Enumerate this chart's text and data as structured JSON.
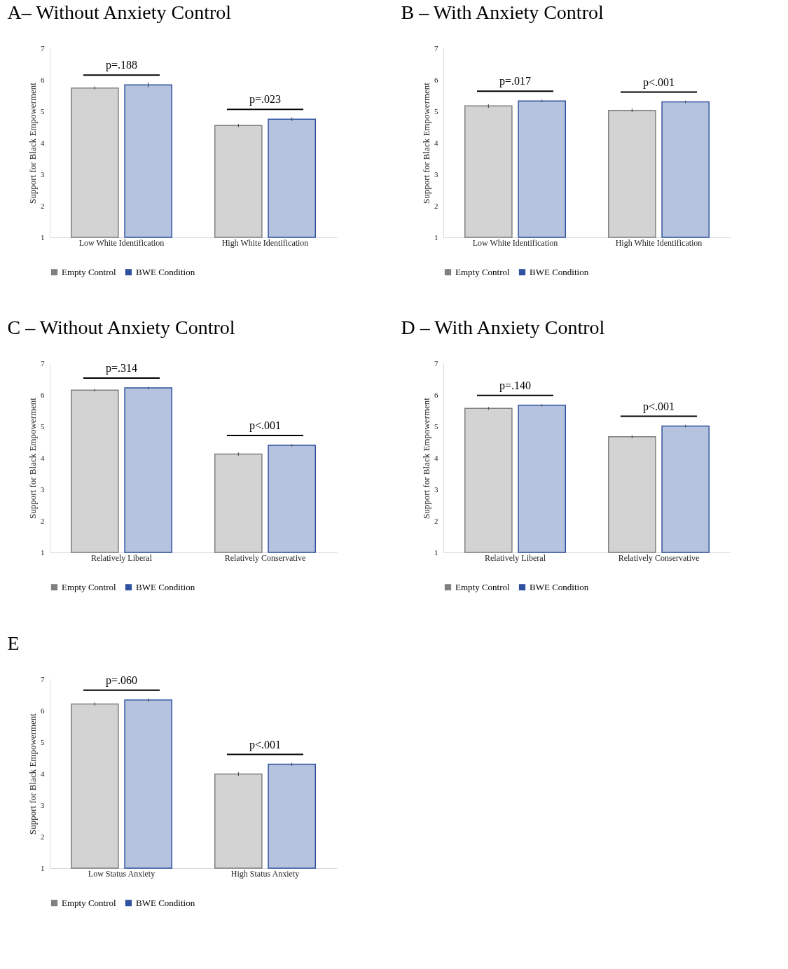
{
  "chart_data": [
    {
      "type": "bar",
      "title": "A– Without Anxiety Control",
      "ylabel": "Support for Black Empowerment",
      "categories": [
        "Low White Identification",
        "High White Identification"
      ],
      "series": [
        {
          "name": "Empty Control",
          "color": "#808080",
          "values": [
            5.74,
            4.55
          ],
          "errors": [
            0.05,
            0.05
          ]
        },
        {
          "name": "BWE Condition",
          "color": "#2f52a0",
          "values": [
            5.84,
            4.75
          ],
          "errors": [
            0.08,
            0.06
          ]
        }
      ],
      "ylim": [
        1,
        7
      ],
      "yticks": [
        1,
        2,
        3,
        4,
        5,
        6,
        7
      ],
      "grid": false,
      "legend": "bottom",
      "annotations": [
        "p=.188",
        "p=.023"
      ]
    },
    {
      "type": "bar",
      "title": "B – With Anxiety Control",
      "ylabel": "Support for Black Empowerment",
      "categories": [
        "Low White Identification",
        "High White Identification"
      ],
      "series": [
        {
          "name": "Empty Control",
          "color": "#808080",
          "values": [
            5.17,
            5.03
          ],
          "errors": [
            0.06,
            0.06
          ]
        },
        {
          "name": "BWE Condition",
          "color": "#2f52a0",
          "values": [
            5.33,
            5.3
          ],
          "errors": [
            0.04,
            0.04
          ]
        }
      ],
      "ylim": [
        1,
        7
      ],
      "yticks": [
        1,
        2,
        3,
        4,
        5,
        6,
        7
      ],
      "grid": false,
      "legend": "bottom",
      "annotations": [
        "p=.017",
        "p<.001"
      ]
    },
    {
      "type": "bar",
      "title": "C – Without Anxiety Control",
      "ylabel": "Support for Black Empowerment",
      "categories": [
        "Relatively Liberal",
        "Relatively Conservative"
      ],
      "series": [
        {
          "name": "Empty Control",
          "color": "#808080",
          "values": [
            6.15,
            4.12
          ],
          "errors": [
            0.04,
            0.05
          ]
        },
        {
          "name": "BWE Condition",
          "color": "#2f52a0",
          "values": [
            6.22,
            4.4
          ],
          "errors": [
            0.04,
            0.04
          ]
        }
      ],
      "ylim": [
        1,
        7
      ],
      "yticks": [
        1,
        2,
        3,
        4,
        5,
        6,
        7
      ],
      "grid": false,
      "legend": "bottom",
      "annotations": [
        "p=.314",
        "p<.001"
      ]
    },
    {
      "type": "bar",
      "title": "D – With Anxiety Control",
      "ylabel": "Support for Black Empowerment",
      "categories": [
        "Relatively Liberal",
        "Relatively Conservative"
      ],
      "series": [
        {
          "name": "Empty Control",
          "color": "#808080",
          "values": [
            5.57,
            4.67
          ],
          "errors": [
            0.05,
            0.05
          ]
        },
        {
          "name": "BWE Condition",
          "color": "#2f52a0",
          "values": [
            5.67,
            5.01
          ],
          "errors": [
            0.04,
            0.04
          ]
        }
      ],
      "ylim": [
        1,
        7
      ],
      "yticks": [
        1,
        2,
        3,
        4,
        5,
        6,
        7
      ],
      "grid": false,
      "legend": "bottom",
      "annotations": [
        "p=.140",
        "p<.001"
      ]
    },
    {
      "type": "bar",
      "title": "E",
      "ylabel": "Support for Black Empowerment",
      "categories": [
        "Low Status Anxiety",
        "High Status Anxiety"
      ],
      "series": [
        {
          "name": "Empty Control",
          "color": "#808080",
          "values": [
            6.21,
            3.99
          ],
          "errors": [
            0.05,
            0.06
          ]
        },
        {
          "name": "BWE Condition",
          "color": "#2f52a0",
          "values": [
            6.34,
            4.3
          ],
          "errors": [
            0.05,
            0.05
          ]
        }
      ],
      "ylim": [
        1,
        7
      ],
      "yticks": [
        1,
        2,
        3,
        4,
        5,
        6,
        7
      ],
      "grid": false,
      "legend": "bottom",
      "annotations": [
        "p=.060",
        "p<.001"
      ]
    }
  ]
}
